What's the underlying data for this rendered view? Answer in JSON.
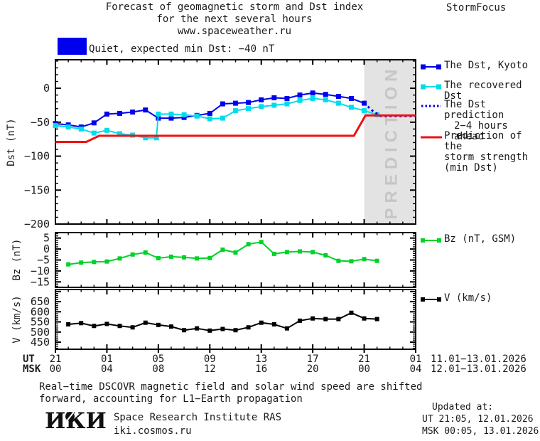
{
  "header": {
    "title_line1": "Forecast of geomagnetic storm and Dst index",
    "title_line2": "for the next several hours",
    "title_line3": "www.spaceweather.ru",
    "brand": "StormFocus"
  },
  "status": {
    "label": "Quiet, expected min Dst: −40 nT",
    "swatch_color": "#0000EE"
  },
  "prediction_band": {
    "label": "PREDICTION",
    "band_color": "#e3e3e3",
    "text_color": "#c6c6c6"
  },
  "legend": {
    "dst": {
      "items": [
        {
          "label": "The Dst, Kyoto",
          "color": "#0000EE",
          "style": "solid-squares"
        },
        {
          "label": "The recovered Dst",
          "color": "#00DCEC",
          "style": "solid-squares"
        },
        {
          "lines": [
            "The Dst prediction",
            "2−4 hours ahead"
          ],
          "color": "#0000EE",
          "style": "dotted"
        },
        {
          "lines": [
            "Prediction of the",
            "storm strength",
            "(min Dst)"
          ],
          "color": "#EE1111",
          "style": "solid"
        }
      ]
    },
    "bz": {
      "label": "Bz (nT, GSM)",
      "color": "#00D228"
    },
    "v": {
      "label": "V (km/s)",
      "color": "#000000"
    }
  },
  "axis": {
    "x": {
      "ut_label": "UT",
      "msk_label": "MSK",
      "ut_ticks": [
        "21",
        "01",
        "05",
        "09",
        "13",
        "17",
        "21",
        "01"
      ],
      "msk_ticks": [
        "00",
        "04",
        "08",
        "12",
        "16",
        "20",
        "00",
        "04"
      ],
      "ut_range": "11.01−13.01.2026",
      "msk_range": "12.01−13.01.2026"
    }
  },
  "footer": {
    "note_line1": "Real−time DSCOVR magnetic field and solar wind speed are shifted",
    "note_line2": "forward, accounting for L1−Earth propagation",
    "logo_text": "ИКИ",
    "institute": "Space Research Institute RAS",
    "website": "iki.cosmos.ru",
    "updated_label": "Updated at:",
    "updated_ut": "UT  21:05, 12.01.2026",
    "updated_msk": "MSK 00:05, 13.01.2026"
  },
  "chart_data": [
    {
      "type": "line",
      "id": "dst",
      "ylabel": "Dst (nT)",
      "ylim": [
        -200,
        42
      ],
      "ytick_labels": [
        0,
        -50,
        -100,
        -150,
        -200
      ],
      "ytick_minor": 10,
      "ytick_major": 50,
      "xlim_hours": [
        0,
        28
      ],
      "x_start_ut": "21:00 11.01.2026",
      "prediction_band_hours": [
        24,
        28
      ],
      "series": [
        {
          "name": "The Dst, Kyoto",
          "color": "#0000EE",
          "marker": true,
          "x": [
            0,
            1,
            2,
            3,
            4,
            5,
            6,
            7,
            8,
            9,
            10,
            11,
            12,
            13,
            14,
            15,
            16,
            17,
            18,
            19,
            20,
            21,
            22,
            23,
            24
          ],
          "values": [
            -52,
            -54,
            -57,
            -51,
            -38,
            -37,
            -35,
            -32,
            -44,
            -44,
            -43,
            -40,
            -37,
            -23,
            -22,
            -21,
            -17,
            -14,
            -15,
            -10,
            -7,
            -9,
            -12,
            -15,
            -22
          ]
        },
        {
          "name": "The recovered Dst",
          "color": "#00DCEC",
          "marker": true,
          "x": [
            0,
            1,
            2,
            3,
            4,
            5,
            6,
            7,
            7.85,
            8,
            9,
            10,
            11,
            12,
            13,
            14,
            15,
            16,
            17,
            18,
            19,
            20,
            21,
            22,
            23,
            24,
            25
          ],
          "values": [
            -55,
            -57,
            -60,
            -66,
            -62,
            -67,
            -69,
            -73,
            -73,
            -38,
            -38,
            -39,
            -41,
            -45,
            -44,
            -33,
            -30,
            -27,
            -25,
            -23,
            -18,
            -15,
            -17,
            -22,
            -28,
            -33,
            -39
          ]
        },
        {
          "name": "The Dst prediction 2−4 hours ahead",
          "color": "#0000EE",
          "dash": true,
          "x": [
            24,
            24.7,
            25.3,
            26,
            27,
            28
          ],
          "values": [
            -22,
            -34,
            -41,
            -41,
            -41,
            -41
          ]
        },
        {
          "name": "Prediction of the storm strength (min Dst)",
          "color": "#EE1111",
          "x": [
            0,
            2.4,
            3.4,
            23.2,
            24.1,
            28
          ],
          "values": [
            -79,
            -79,
            -70,
            -70,
            -40,
            -40
          ]
        }
      ]
    },
    {
      "type": "line",
      "id": "bz",
      "ylabel": "Bz (nT)",
      "ylim": [
        -17.5,
        7.5
      ],
      "ytick_labels": [
        5,
        0,
        -5,
        -10,
        -15
      ],
      "ytick_minor": 1,
      "ytick_major": 5,
      "xlim_hours": [
        0,
        28
      ],
      "series": [
        {
          "name": "Bz (nT, GSM)",
          "color": "#00D228",
          "marker": true,
          "x": [
            1,
            2,
            3,
            4,
            5,
            6,
            7,
            8,
            9,
            10,
            11,
            12,
            13,
            14,
            15,
            16,
            17,
            18,
            19,
            20,
            21,
            22,
            23,
            24,
            25
          ],
          "values": [
            -7,
            -6.2,
            -5.9,
            -5.7,
            -4.3,
            -2.5,
            -1.6,
            -4.2,
            -3.5,
            -3.8,
            -4.3,
            -4.1,
            -0.3,
            -1.6,
            2.2,
            3.2,
            -2.2,
            -1.4,
            -1.1,
            -1.4,
            -2.9,
            -5.4,
            -5.6,
            -4.6,
            -5.4
          ]
        }
      ]
    },
    {
      "type": "line",
      "id": "v",
      "ylabel": "V (km/s)",
      "ylim": [
        415,
        710
      ],
      "ytick_labels": [
        650,
        600,
        550,
        500,
        450
      ],
      "ytick_minor": 10,
      "ytick_major": 50,
      "xlim_hours": [
        0,
        28
      ],
      "series": [
        {
          "name": "V (km/s)",
          "color": "#000000",
          "marker": true,
          "x": [
            1,
            2,
            3,
            4,
            5,
            6,
            7,
            8,
            9,
            10,
            11,
            12,
            13,
            14,
            15,
            16,
            17,
            18,
            19,
            20,
            21,
            22,
            23,
            24,
            25
          ],
          "values": [
            538,
            544,
            530,
            540,
            530,
            523,
            546,
            535,
            527,
            509,
            518,
            507,
            515,
            509,
            523,
            546,
            538,
            518,
            556,
            567,
            564,
            564,
            595,
            567,
            564
          ]
        }
      ]
    }
  ]
}
